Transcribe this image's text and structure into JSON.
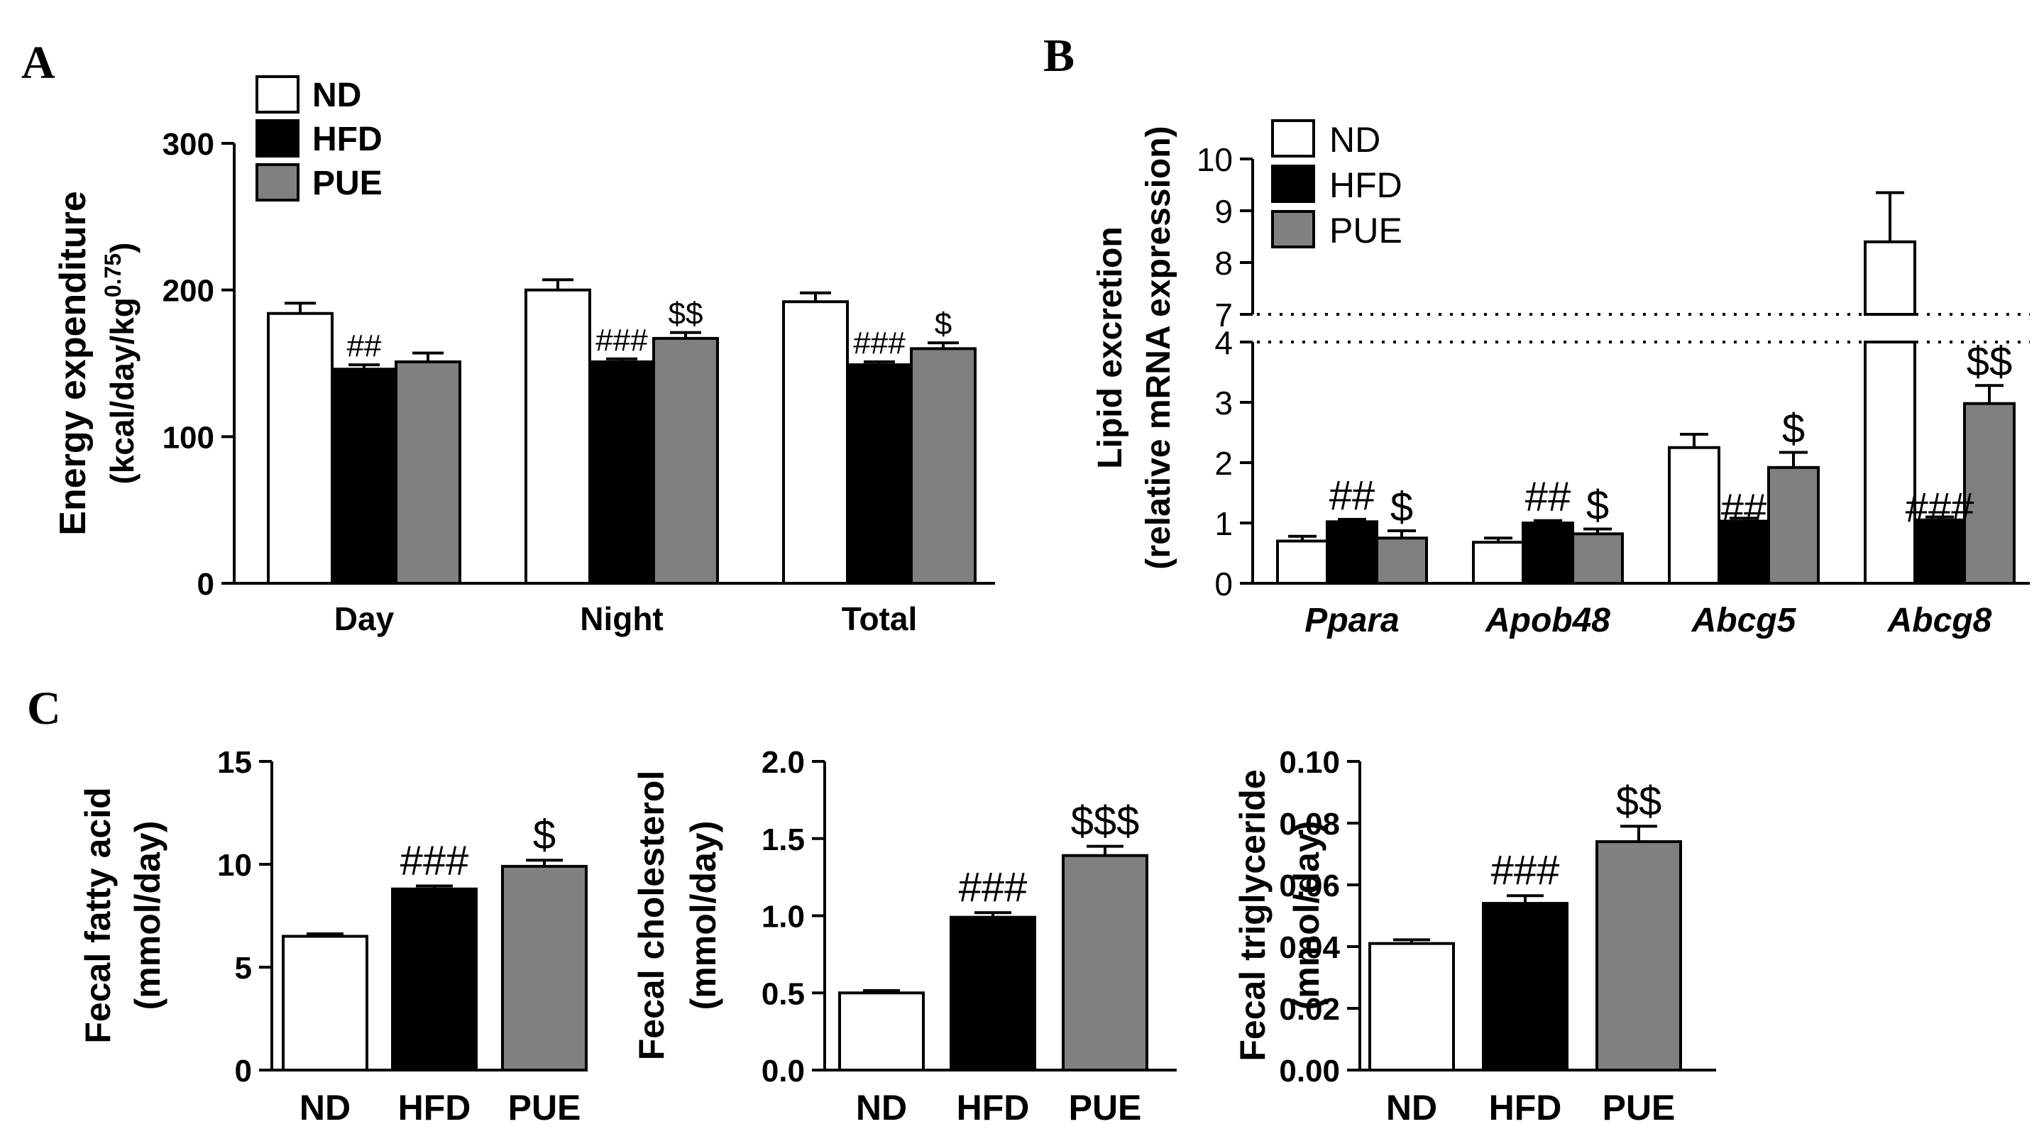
{
  "colors": {
    "ND": "#ffffff",
    "HFD": "#000000",
    "PUE": "#808080",
    "axis": "#000000"
  },
  "panel_letters": [
    "A",
    "B",
    "C"
  ],
  "chart_data": [
    {
      "panel": "A",
      "type": "bar",
      "ylabel_line1": "Energy expenditure",
      "ylabel_line2_prefix": "(kcal/day/kg",
      "ylabel_line2_sup": "0.75",
      "ylabel_line2_suffix": ")",
      "ylim": [
        0,
        300
      ],
      "yticks": [
        0,
        100,
        200,
        300
      ],
      "ytick_labels": [
        "0",
        "100",
        "200",
        "300"
      ],
      "categories": [
        "Day",
        "Night",
        "Total"
      ],
      "legend_position": "top-left",
      "series": [
        {
          "name": "ND",
          "values": [
            184,
            200,
            192
          ],
          "errors": [
            7,
            7,
            6
          ]
        },
        {
          "name": "HFD",
          "values": [
            146,
            151,
            149
          ],
          "errors": [
            3,
            2,
            2
          ]
        },
        {
          "name": "PUE",
          "values": [
            151,
            167,
            160
          ],
          "errors": [
            6,
            4,
            4
          ]
        }
      ],
      "annotations": [
        {
          "category": 0,
          "series": 1,
          "text": "##"
        },
        {
          "category": 1,
          "series": 1,
          "text": "###"
        },
        {
          "category": 1,
          "series": 2,
          "text": "$$"
        },
        {
          "category": 2,
          "series": 1,
          "text": "###"
        },
        {
          "category": 2,
          "series": 2,
          "text": "$"
        }
      ]
    },
    {
      "panel": "B",
      "type": "bar",
      "ylabel_line1": "Lipid excretion",
      "ylabel_line2": "(relative mRNA expression)",
      "broken_axis": true,
      "ylim_lower": [
        0,
        4
      ],
      "ylim_upper": [
        7,
        10
      ],
      "ytick_labels_lower": [
        "0",
        "1",
        "2",
        "3",
        "4"
      ],
      "ytick_labels_upper": [
        "7",
        "8",
        "9",
        "10"
      ],
      "categories": [
        "Ppara",
        "Apob48",
        "Abcg5",
        "Abcg8"
      ],
      "legend_position": "top-left",
      "series": [
        {
          "name": "ND",
          "values": [
            0.7,
            0.68,
            2.25,
            8.4
          ],
          "errors": [
            0.08,
            0.07,
            0.22,
            0.95
          ]
        },
        {
          "name": "HFD",
          "values": [
            1.02,
            1.0,
            1.03,
            1.05
          ],
          "errors": [
            0.04,
            0.04,
            0.05,
            0.05
          ]
        },
        {
          "name": "PUE",
          "values": [
            0.75,
            0.82,
            1.92,
            2.98
          ],
          "errors": [
            0.12,
            0.08,
            0.25,
            0.3
          ]
        }
      ],
      "annotations": [
        {
          "category": 0,
          "series": 1,
          "text": "##"
        },
        {
          "category": 0,
          "series": 2,
          "text": "$"
        },
        {
          "category": 1,
          "series": 1,
          "text": "##"
        },
        {
          "category": 1,
          "series": 2,
          "text": "$"
        },
        {
          "category": 2,
          "series": 1,
          "text": "##"
        },
        {
          "category": 2,
          "series": 2,
          "text": "$"
        },
        {
          "category": 3,
          "series": 1,
          "text": "###"
        },
        {
          "category": 3,
          "series": 2,
          "text": "$$"
        }
      ]
    },
    {
      "panel": "C1",
      "type": "bar",
      "ylabel_line1": "Fecal fatty acid",
      "ylabel_line2": "(mmol/day)",
      "ylim": [
        0,
        15
      ],
      "yticks": [
        0,
        5,
        10,
        15
      ],
      "ytick_labels": [
        "0",
        "5",
        "10",
        "15"
      ],
      "categories": [
        "ND",
        "HFD",
        "PUE"
      ],
      "values": [
        6.5,
        8.8,
        9.9
      ],
      "errors": [
        0.12,
        0.15,
        0.3
      ],
      "annotations": [
        "",
        "###",
        "$"
      ]
    },
    {
      "panel": "C2",
      "type": "bar",
      "ylabel_line1": "Fecal cholesterol",
      "ylabel_line2": "(mmol/day)",
      "ylim": [
        0,
        2.0
      ],
      "yticks": [
        0,
        0.5,
        1.0,
        1.5,
        2.0
      ],
      "ytick_labels": [
        "0.0",
        "0.5",
        "1.0",
        "1.5",
        "2.0"
      ],
      "categories": [
        "ND",
        "HFD",
        "PUE"
      ],
      "values": [
        0.5,
        0.99,
        1.39
      ],
      "errors": [
        0.015,
        0.03,
        0.06
      ],
      "annotations": [
        "",
        "###",
        "$$$"
      ]
    },
    {
      "panel": "C3",
      "type": "bar",
      "ylabel_line1": "Fecal triglyceride",
      "ylabel_line2": "(mmol/day)",
      "ylim": [
        0,
        0.1
      ],
      "yticks": [
        0,
        0.02,
        0.04,
        0.06,
        0.08,
        0.1
      ],
      "ytick_labels": [
        "0.00",
        "0.02",
        "0.04",
        "0.06",
        "0.08",
        "0.10"
      ],
      "categories": [
        "ND",
        "HFD",
        "PUE"
      ],
      "values": [
        0.041,
        0.054,
        0.074
      ],
      "errors": [
        0.0012,
        0.0025,
        0.005
      ],
      "annotations": [
        "",
        "###",
        "$$"
      ]
    }
  ]
}
